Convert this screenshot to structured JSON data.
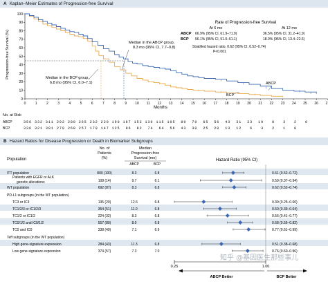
{
  "panel_a": {
    "letter": "A",
    "title": "Kaplan–Meier Estimates of Progression-free Survival",
    "y_axis_label": "Progression-free Survival (%)",
    "x_axis_label": "Months",
    "y_ticks": [
      "0",
      "10",
      "20",
      "30",
      "40",
      "50",
      "60",
      "70",
      "80",
      "90",
      "100"
    ],
    "x_ticks": [
      "0",
      "1",
      "2",
      "3",
      "4",
      "5",
      "6",
      "7",
      "8",
      "9",
      "10",
      "11",
      "12",
      "13",
      "14",
      "15",
      "16",
      "17",
      "18",
      "19",
      "20",
      "21",
      "22",
      "23",
      "24",
      "25",
      "26",
      "27"
    ],
    "rate_box": {
      "title": "Rate of Progression-free Survival",
      "col_6mo": "At 6 mo",
      "col_12mo": "At 12 mo",
      "rows": [
        {
          "group": "ABCP",
          "at6": "66.9% (95% CI, 61.9–71.9)",
          "at12": "36.5% (95% CI, 31.2–41.9)"
        },
        {
          "group": "BCP",
          "at6": "56.1% (95% CI, 51.0–61.1)",
          "at12": "18.0% (95% CI, 13.4–22.6)"
        }
      ],
      "hr_line1": "Stratified hazard ratio, 0.62 (95% CI, 0.52–0.74)",
      "hr_line2": "P<0.001"
    },
    "median_abcp_line1": "Median in the ABCP group,",
    "median_abcp_line2": "8.3 mo (95% CI, 7.7–9.8)",
    "median_bcp_line1": "Median in the BCP group,",
    "median_bcp_line2": "6.8 mo (95% CI, 6.0–7.1)",
    "curve_label_abcp": "ABCP",
    "curve_label_bcp": "BCP",
    "colors": {
      "abcp": "#3d68b0",
      "bcp": "#e9a84a",
      "header_bg": "#dde6ef",
      "band": "#dfe8f1",
      "marker": "#3d68b0"
    }
  },
  "at_risk": {
    "title": "No. at Risk",
    "rows": [
      {
        "label": "ABCP",
        "counts": "356 332 311 292 280 265 232 220 190 167 152 130 115 105  89  70  65  56  43  31  23  19   8   3   2   0"
      },
      {
        "label": "BCP",
        "counts": "336 321 301 279 268 257 179 147 125  96  82  74  64  56  43  30  25  20  13  12   6   3   2   1   0"
      }
    ]
  },
  "panel_b": {
    "letter": "B",
    "title": "Hazard Ratios for Disease Progression or Death in Biomarker Subgroups",
    "col_population": "Population",
    "col_patients_1": "No. of",
    "col_patients_2": "Patients",
    "col_patients_3": "(%)",
    "col_median_1": "Median",
    "col_median_2": "Progression-free",
    "col_median_3": "Survival (mo)",
    "col_abcp": "ABCP",
    "col_bcp": "BCP",
    "col_hr": "Hazard Ratio (95% CI)",
    "axis_ticks": [
      "0.25",
      "1.00"
    ],
    "better_left": "ABCP Better",
    "better_right": "BCP Better",
    "rows": [
      {
        "label": "ITT population",
        "n": "800 (100)",
        "abcp": "8.3",
        "bcp": "6.8",
        "hr": "0.61 (0.52–0.72)"
      },
      {
        "label": "Patients with EGFR or ALK genetic alterations",
        "label_line1": "Patients with EGFR or ALK",
        "label_line2": "genetic alterations",
        "n": "108 (14)",
        "abcp": "9.7",
        "bcp": "6.1",
        "hr": "0.59 (0.37–0.94)"
      },
      {
        "label": "WT population",
        "n": "692 (87)",
        "abcp": "8.3",
        "bcp": "6.8",
        "hr": "0.62 (0.52–0.74)"
      },
      {
        "label": "PD-L1 subgroups (in the WT population)"
      },
      {
        "label": "TC3 or IC3",
        "n": "135 (20)",
        "abcp": "12.6",
        "bcp": "6.8",
        "hr": "0.39 (0.25–0.60)"
      },
      {
        "label": "TC1/2/3 or IC1/2/3",
        "n": "354 (51)",
        "abcp": "11.0",
        "bcp": "6.8",
        "hr": "0.50 (0.39–0.64)"
      },
      {
        "label": "TC1/2 or IC1/2",
        "n": "224 (32)",
        "abcp": "8.3",
        "bcp": "6.8",
        "hr": "0.56 (0.41–0.77)"
      },
      {
        "label": "TC0/1/2 and IC0/1/2",
        "n": "557 (80)",
        "abcp": "8.0",
        "bcp": "6.8",
        "hr": "0.68 (0.56–0.82)"
      },
      {
        "label": "TC0 and IC0",
        "n": "338 (49)",
        "abcp": "7.1",
        "bcp": "6.9",
        "hr": "0.77 (0.61–0.99)"
      },
      {
        "label": "Teff subgroups (in the WT population)"
      },
      {
        "label": "High gene-signature expression",
        "n": "284 (43)",
        "abcp": "11.3",
        "bcp": "6.8",
        "hr": "0.51 (0.38–0.68)"
      },
      {
        "label": "Low gene-signature expression",
        "n": "374 (57)",
        "abcp": "7.3",
        "bcp": "7.0",
        "hr": "0.76 (0.60–0.96)"
      }
    ]
  },
  "watermark": "知乎 @基因医生那些事儿"
}
